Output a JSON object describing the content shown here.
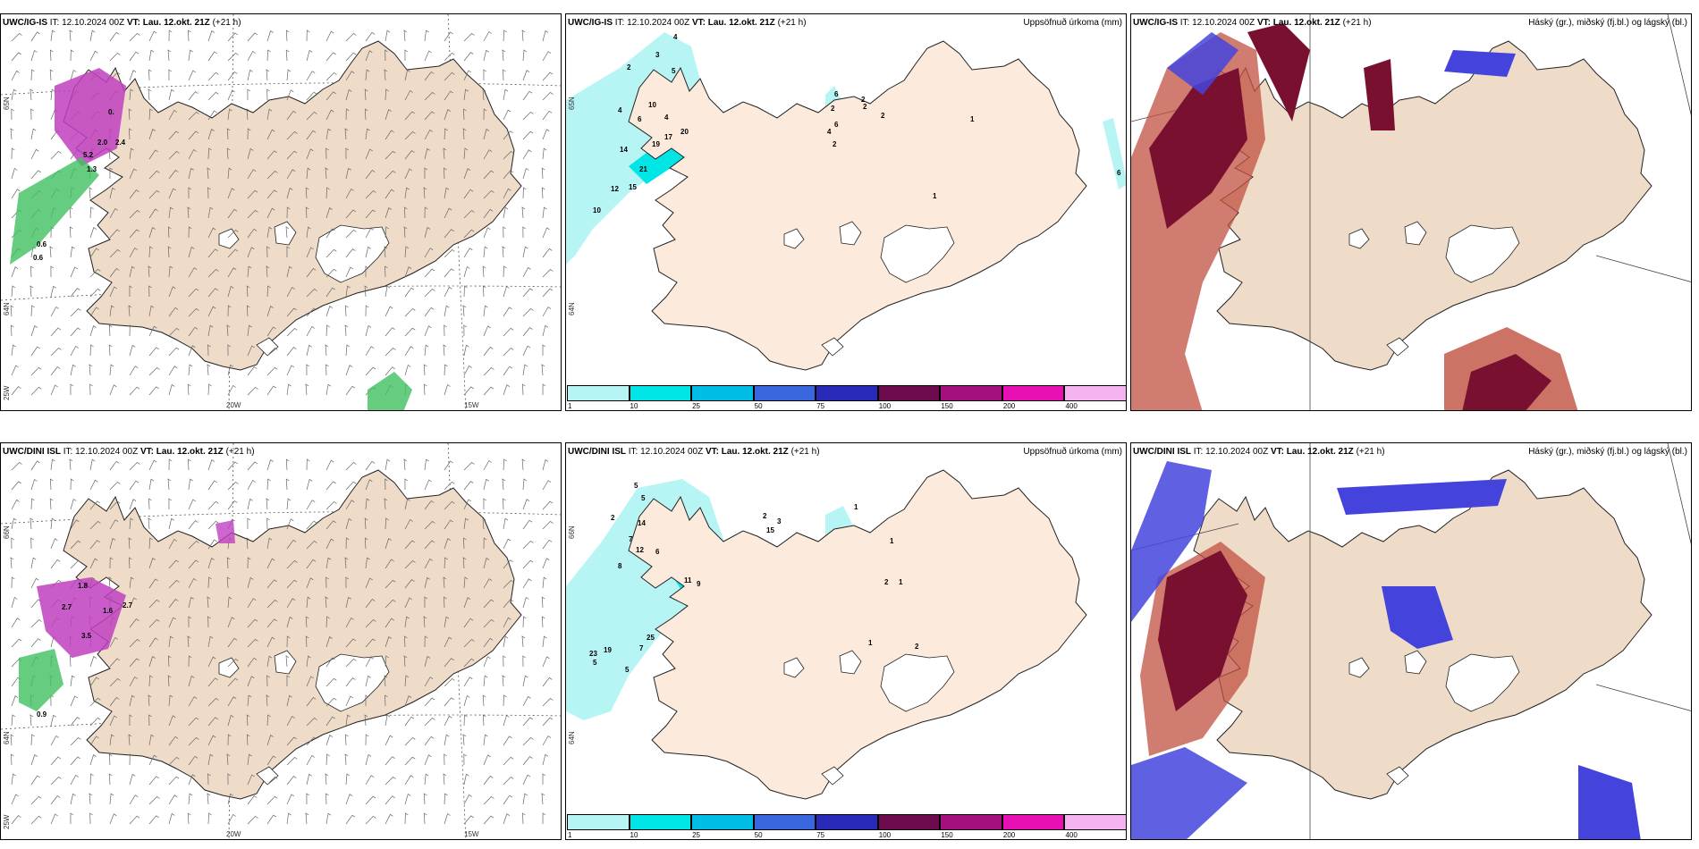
{
  "panels": [
    {
      "id": "wind-ig",
      "model": "UWC/IG-IS",
      "it_label": "IT:",
      "it": "12.10.2024 00Z",
      "vt_label": "VT:",
      "vt": "Lau. 12.okt. 21Z",
      "lead": "(+21 h)",
      "right_title": "",
      "lat_labels": [
        "65N",
        "64N",
        "25W"
      ],
      "lon_labels": [
        "20W",
        "15W"
      ],
      "values": [
        "0.",
        "2.4",
        "2.0",
        "5.2",
        "1.3",
        "0.6",
        "0.6"
      ]
    },
    {
      "id": "precip-ig",
      "model": "UWC/IG-IS",
      "it_label": "IT:",
      "it": "12.10.2024 00Z",
      "vt_label": "VT:",
      "vt": "Lau. 12.okt. 21Z",
      "lead": "(+21 h)",
      "right_title": "Uppsöfnuð úrkoma (mm)",
      "lat_labels": [
        "65N",
        "64N"
      ],
      "lon_labels": [],
      "values": [
        "4",
        "3",
        "2",
        "5",
        "4",
        "10",
        "6",
        "4",
        "14",
        "19",
        "17",
        "20",
        "21",
        "15",
        "12",
        "10",
        "6",
        "6",
        "2",
        "2",
        "2",
        "1",
        "1",
        "2",
        "4",
        "2",
        "6"
      ]
    },
    {
      "id": "cloud-ig",
      "model": "UWC/IG-IS",
      "it_label": "IT:",
      "it": "12.10.2024 00Z",
      "vt_label": "VT:",
      "vt": "Lau. 12.okt. 21Z",
      "lead": "(+21 h)",
      "right_title": "Háský (gr.), miðský (fj.bl.) og lágský (bl.)",
      "lat_labels": [],
      "lon_labels": [],
      "values": []
    },
    {
      "id": "wind-dini",
      "model": "UWC/DINI ISL",
      "it_label": "IT:",
      "it": "12.10.2024 00Z",
      "vt_label": "VT:",
      "vt": "Lau. 12.okt. 21Z",
      "lead": "(+21 h)",
      "right_title": "",
      "lat_labels": [
        "66N",
        "64N",
        "25W"
      ],
      "lon_labels": [
        "20W",
        "15W"
      ],
      "values": [
        "1.8",
        "2.7",
        "1.6",
        "2.7",
        "3.5",
        "0.9"
      ]
    },
    {
      "id": "precip-dini",
      "model": "UWC/DINI ISL",
      "it_label": "IT:",
      "it": "12.10.2024 00Z",
      "vt_label": "VT:",
      "vt": "Lau. 12.okt. 21Z",
      "lead": "(+21 h)",
      "right_title": "Uppsöfnuð úrkoma (mm)",
      "lat_labels": [
        "66N",
        "64N"
      ],
      "lon_labels": [],
      "values": [
        "5",
        "5",
        "2",
        "7",
        "14",
        "12",
        "8",
        "6",
        "9",
        "11",
        "25",
        "23",
        "19",
        "7",
        "5",
        "5",
        "2",
        "15",
        "3",
        "1",
        "1",
        "1",
        "2",
        "1",
        "2"
      ]
    },
    {
      "id": "cloud-dini",
      "model": "UWC/DINI ISL",
      "it_label": "IT:",
      "it": "12.10.2024 00Z",
      "vt_label": "VT:",
      "vt": "Lau. 12.okt. 21Z",
      "lead": "(+21 h)",
      "right_title": "Háský (gr.), miðský (fj.bl.) og lágský (bl.)",
      "lat_labels": [],
      "lon_labels": [],
      "values": []
    }
  ],
  "colorbar": {
    "ticks": [
      "1",
      "10",
      "25",
      "50",
      "75",
      "100",
      "150",
      "200",
      "400"
    ],
    "colors": [
      "#b7f5f5",
      "#00e5e5",
      "#00bde6",
      "#3a66e0",
      "#2a2ab8",
      "#6e0a4e",
      "#a4117e",
      "#e80fb4",
      "#f4b4ef"
    ]
  },
  "colors": {
    "land": "#efdcc8",
    "land_precip": "#fcebdc",
    "low_cloud": "#4444dd",
    "mid_cloud": "#7a1030",
    "high_cloud": "#c05040"
  }
}
